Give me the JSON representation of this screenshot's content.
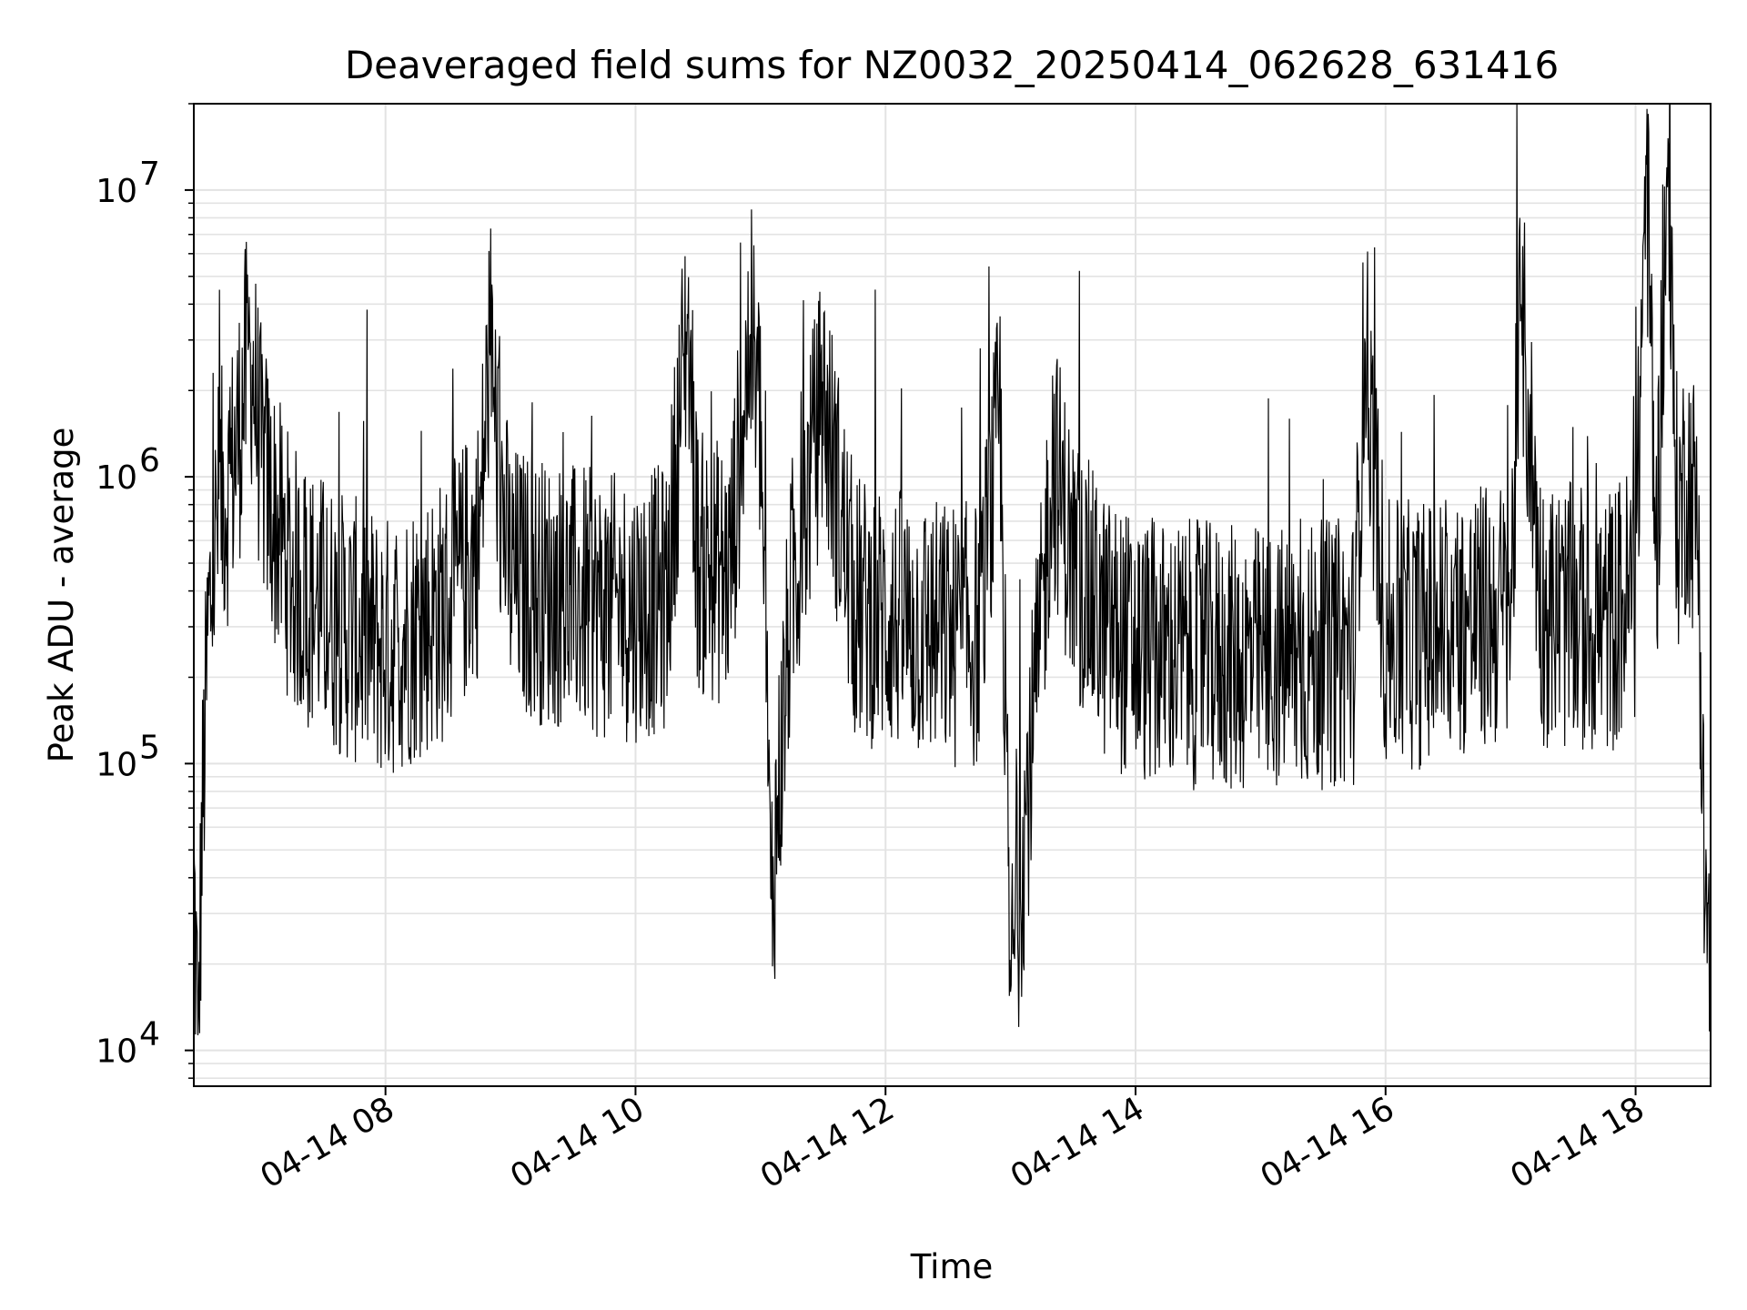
{
  "chart_data": {
    "type": "line",
    "title": "Deaveraged field sums for NZ0032_20250414_062628_631416",
    "xlabel": "Time",
    "ylabel": "Peak ADU - average",
    "yscale": "log",
    "ylim": [
      7500,
      20000000
    ],
    "xlim": [
      "2025-04-14 06:28",
      "2025-04-14 18:36"
    ],
    "x_ticks": [
      "04-14 08",
      "04-14 10",
      "04-14 12",
      "04-14 14",
      "04-14 16",
      "04-14 18"
    ],
    "y_ticks": [
      {
        "value": 10000,
        "base": "10",
        "exp": "4"
      },
      {
        "value": 100000,
        "base": "10",
        "exp": "5"
      },
      {
        "value": 1000000,
        "base": "10",
        "exp": "6"
      },
      {
        "value": 10000000,
        "base": "10",
        "exp": "7"
      }
    ],
    "grid": true,
    "line_color": "#000000",
    "series": [
      {
        "x": [
          "2025-04-14 06:28",
          "2025-04-14 06:30",
          "2025-04-14 06:32",
          "2025-04-14 06:35",
          "2025-04-14 06:40",
          "2025-04-14 06:45",
          "2025-04-14 06:50",
          "2025-04-14 06:55",
          "2025-04-14 07:00",
          "2025-04-14 07:05",
          "2025-04-14 07:10",
          "2025-04-14 07:15",
          "2025-04-14 07:20",
          "2025-04-14 07:30",
          "2025-04-14 07:40",
          "2025-04-14 07:50",
          "2025-04-14 08:00",
          "2025-04-14 08:15",
          "2025-04-14 08:30",
          "2025-04-14 08:45",
          "2025-04-14 08:50",
          "2025-04-14 08:55",
          "2025-04-14 09:00",
          "2025-04-14 09:15",
          "2025-04-14 09:30",
          "2025-04-14 09:45",
          "2025-04-14 10:00",
          "2025-04-14 10:15",
          "2025-04-14 10:25",
          "2025-04-14 10:30",
          "2025-04-14 10:45",
          "2025-04-14 10:55",
          "2025-04-14 11:00",
          "2025-04-14 11:05",
          "2025-04-14 11:15",
          "2025-04-14 11:30",
          "2025-04-14 11:45",
          "2025-04-14 12:00",
          "2025-04-14 12:15",
          "2025-04-14 12:30",
          "2025-04-14 12:45",
          "2025-04-14 12:55",
          "2025-04-14 13:00",
          "2025-04-14 13:15",
          "2025-04-14 13:20",
          "2025-04-14 13:30",
          "2025-04-14 13:45",
          "2025-04-14 14:00",
          "2025-04-14 14:15",
          "2025-04-14 14:30",
          "2025-04-14 14:45",
          "2025-04-14 15:00",
          "2025-04-14 15:15",
          "2025-04-14 15:30",
          "2025-04-14 15:45",
          "2025-04-14 15:50",
          "2025-04-14 16:00",
          "2025-04-14 16:15",
          "2025-04-14 16:30",
          "2025-04-14 16:45",
          "2025-04-14 17:00",
          "2025-04-14 17:05",
          "2025-04-14 17:15",
          "2025-04-14 17:30",
          "2025-04-14 17:45",
          "2025-04-14 18:00",
          "2025-04-14 18:05",
          "2025-04-14 18:10",
          "2025-04-14 18:15",
          "2025-04-14 18:20",
          "2025-04-14 18:25",
          "2025-04-14 18:30",
          "2025-04-14 18:33",
          "2025-04-14 18:36"
        ],
        "y": [
          40000,
          11000,
          60000,
          300000,
          800000,
          900000,
          1500000,
          3000000,
          1200000,
          800000,
          600000,
          450000,
          400000,
          350000,
          300000,
          280000,
          250000,
          300000,
          350000,
          600000,
          2800000,
          900000,
          450000,
          400000,
          380000,
          350000,
          350000,
          380000,
          3800000,
          500000,
          450000,
          3200000,
          1500000,
          32000,
          400000,
          1900000,
          350000,
          320000,
          300000,
          280000,
          280000,
          1600000,
          16000,
          300000,
          1200000,
          500000,
          300000,
          250000,
          240000,
          240000,
          230000,
          230000,
          230000,
          240000,
          250000,
          3100000,
          280000,
          280000,
          300000,
          320000,
          340000,
          4000000,
          340000,
          320000,
          300000,
          400000,
          14000000,
          500000,
          12000000,
          700000,
          1000000,
          700000,
          40000,
          20000
        ]
      }
    ]
  }
}
